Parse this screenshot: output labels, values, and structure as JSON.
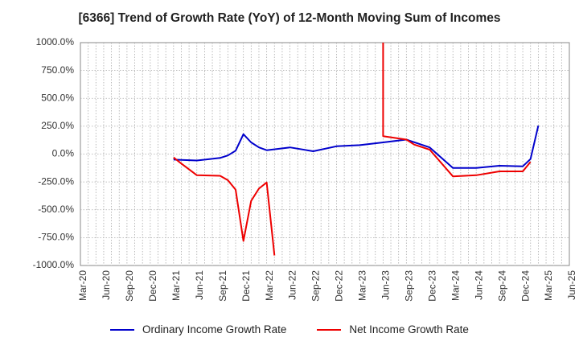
{
  "chart_data": {
    "type": "line",
    "title": "[6366]  Trend of Growth Rate (YoY) of 12-Month Moving Sum of Incomes",
    "xlabel": "",
    "ylabel": "",
    "ylim": [
      -1000,
      1000
    ],
    "yticks": [
      1000,
      750,
      500,
      250,
      0,
      -250,
      -500,
      -750,
      -1000
    ],
    "ytick_labels": [
      "1000.0%",
      "750.0%",
      "500.0%",
      "250.0%",
      "0.0%",
      "-250.0%",
      "-500.0%",
      "-750.0%",
      "-1000.0%"
    ],
    "x_start": "Mar-20",
    "x_end": "Jun-25",
    "xtick_labels": [
      "Mar-20",
      "Jun-20",
      "Sep-20",
      "Dec-20",
      "Mar-21",
      "Jun-21",
      "Sep-21",
      "Dec-21",
      "Mar-22",
      "Jun-22",
      "Sep-22",
      "Dec-22",
      "Mar-23",
      "Jun-23",
      "Sep-23",
      "Dec-23",
      "Mar-24",
      "Jun-24",
      "Sep-24",
      "Dec-24",
      "Mar-25",
      "Jun-25"
    ],
    "grid": true,
    "legend_position": "bottom",
    "series": [
      {
        "name": "Ordinary Income Growth Rate",
        "color": "#0000cc",
        "points": [
          [
            "Mar-21",
            -50
          ],
          [
            "Jun-21",
            -58
          ],
          [
            "Sep-21",
            -35
          ],
          [
            "Oct-21",
            -12
          ],
          [
            "Nov-21",
            30
          ],
          [
            "Dec-21",
            178
          ],
          [
            "Jan-22",
            105
          ],
          [
            "Feb-22",
            60
          ],
          [
            "Mar-22",
            35
          ],
          [
            "Jun-22",
            60
          ],
          [
            "Sep-22",
            25
          ],
          [
            "Dec-22",
            70
          ],
          [
            "Mar-23",
            80
          ],
          [
            "Jun-23",
            105
          ],
          [
            "Sep-23",
            130
          ],
          [
            "Dec-23",
            60
          ],
          [
            "Mar-24",
            -125
          ],
          [
            "Jun-24",
            -125
          ],
          [
            "Sep-24",
            -105
          ],
          [
            "Dec-24",
            -110
          ],
          [
            "Jan-25",
            -45
          ],
          [
            "Feb-25",
            255
          ]
        ]
      },
      {
        "name": "Net Income Growth Rate",
        "color": "#ee0000",
        "points": [
          [
            "Mar-21",
            -30
          ],
          [
            "Apr-21",
            -85
          ],
          [
            "Jun-21",
            -190
          ],
          [
            "Sep-21",
            -195
          ],
          [
            "Oct-21",
            -235
          ],
          [
            "Nov-21",
            -320
          ],
          [
            "Dec-21",
            -780
          ],
          [
            "Jan-22",
            -420
          ],
          [
            "Feb-22",
            -310
          ],
          [
            "Mar-22",
            -255
          ],
          [
            "Apr-22",
            -910
          ],
          null,
          [
            "Jun-23",
            1000
          ],
          [
            "Jun-23",
            160
          ],
          [
            "Sep-23",
            130
          ],
          [
            "Oct-23",
            85
          ],
          [
            "Dec-23",
            40
          ],
          [
            "Mar-24",
            -200
          ],
          [
            "Jun-24",
            -190
          ],
          [
            "Sep-24",
            -155
          ],
          [
            "Dec-24",
            -155
          ],
          [
            "Jan-25",
            -70
          ]
        ]
      }
    ]
  }
}
